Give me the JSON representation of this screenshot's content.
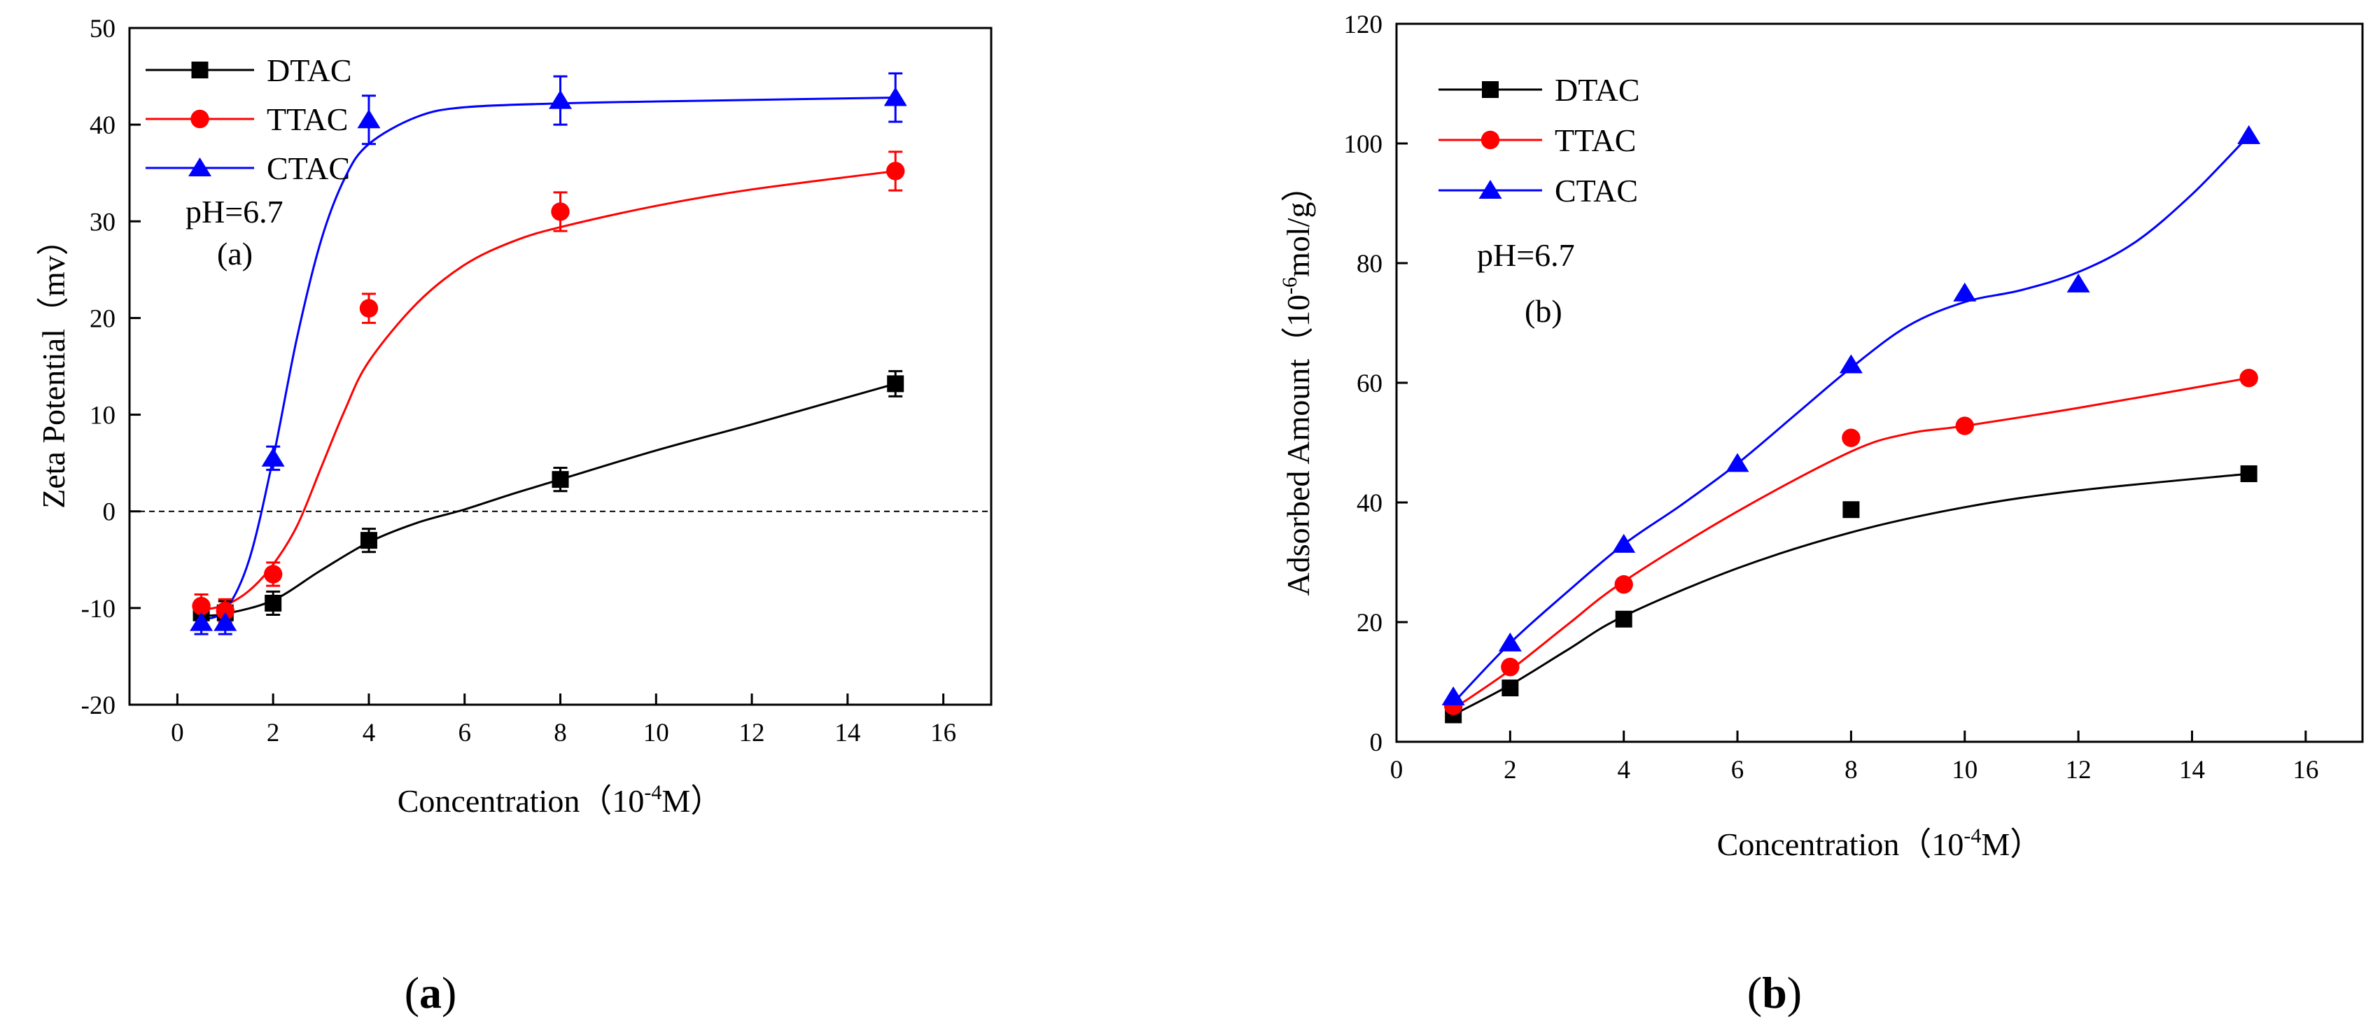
{
  "chart_data": [
    {
      "type": "line",
      "panel": "(a)",
      "xlabel": "Concentration",
      "xlabel_unit_open": "（",
      "xlabel_unit_base": "10",
      "xlabel_unit_exp": "-4",
      "xlabel_unit_tail": "M）",
      "ylabel": "Zeta Potential（mv）",
      "xlim": [
        -1,
        17
      ],
      "ylim": [
        -20,
        50
      ],
      "xticks": [
        0,
        2,
        4,
        6,
        8,
        10,
        12,
        14,
        16
      ],
      "yticks": [
        -20,
        -10,
        0,
        10,
        20,
        30,
        40,
        50
      ],
      "reference_line_y": 0,
      "legend_position": "top-left",
      "annotations": [
        "pH=6.7",
        "(a)"
      ],
      "series": [
        {
          "name": "DTAC",
          "color": "#000000",
          "marker": "square",
          "x": [
            0.5,
            1,
            2,
            4,
            8,
            15
          ],
          "y": [
            -10.5,
            -10.5,
            -9.5,
            -3,
            3.3,
            13.2
          ],
          "err": [
            1.2,
            1.2,
            1.2,
            1.2,
            1.2,
            1.3
          ],
          "fit_x": [
            0.5,
            1,
            2,
            3,
            4,
            5,
            6,
            7,
            8,
            10,
            12,
            14,
            15
          ],
          "fit_y": [
            -10.8,
            -10.6,
            -9.2,
            -6.1,
            -3.2,
            -1.2,
            0.2,
            1.8,
            3.3,
            6.3,
            9.0,
            11.8,
            13.2
          ]
        },
        {
          "name": "TTAC",
          "color": "#ff0000",
          "marker": "circle",
          "x": [
            0.5,
            1,
            2,
            4,
            8,
            15
          ],
          "y": [
            -9.8,
            -10.3,
            -6.5,
            21,
            31,
            35.2
          ],
          "err": [
            1.2,
            1.2,
            1.2,
            1.5,
            2.0,
            2.0
          ],
          "fit_x": [
            0.5,
            1,
            1.5,
            2,
            2.5,
            3,
            3.5,
            4,
            5,
            6,
            7,
            8,
            10,
            12,
            15
          ],
          "fit_y": [
            -10.2,
            -9.7,
            -8.2,
            -5.5,
            -1.5,
            4.5,
            10.5,
            15.5,
            21.5,
            25.5,
            27.9,
            29.4,
            31.6,
            33.3,
            35.2
          ]
        },
        {
          "name": "CTAC",
          "color": "#0000ff",
          "marker": "triangle",
          "x": [
            0.5,
            1,
            2,
            4,
            8,
            15
          ],
          "y": [
            -11.5,
            -11.5,
            5.5,
            40.5,
            42.5,
            42.8
          ],
          "err": [
            1.2,
            1.2,
            1.2,
            2.5,
            2.5,
            2.5
          ],
          "fit_x": [
            0.5,
            1,
            1.5,
            2,
            2.5,
            3,
            3.5,
            4,
            5,
            6,
            8,
            10,
            15
          ],
          "fit_y": [
            -11.2,
            -10.2,
            -5.0,
            5.5,
            18.0,
            28.0,
            34.5,
            38.0,
            40.8,
            41.8,
            42.2,
            42.4,
            42.8
          ]
        }
      ]
    },
    {
      "type": "line",
      "panel": "(b)",
      "xlabel": "Concentration",
      "xlabel_unit_open": "（",
      "xlabel_unit_base": "10",
      "xlabel_unit_exp": "-4",
      "xlabel_unit_tail": "M）",
      "ylabel_main": "Adsorbed Amount（",
      "ylabel_unit_base": "10",
      "ylabel_unit_exp": "-6",
      "ylabel_unit_tail": "mol/g）",
      "xlim": [
        0,
        17
      ],
      "ylim": [
        0,
        120
      ],
      "xticks": [
        0,
        2,
        4,
        6,
        8,
        10,
        12,
        14,
        16
      ],
      "yticks": [
        0,
        20,
        40,
        60,
        80,
        100,
        120
      ],
      "legend_position": "top-left",
      "annotations": [
        "pH=6.7",
        "(b)"
      ],
      "series": [
        {
          "name": "DTAC",
          "color": "#000000",
          "marker": "square",
          "x": [
            1,
            2,
            4,
            8,
            15
          ],
          "y": [
            4.5,
            9,
            20.5,
            38.8,
            44.8
          ],
          "fit_x": [
            1,
            2,
            3,
            4,
            6,
            8,
            10,
            12,
            15
          ],
          "fit_y": [
            4.5,
            9.5,
            15.3,
            21,
            29,
            35,
            39.2,
            42,
            44.8
          ]
        },
        {
          "name": "TTAC",
          "color": "#ff0000",
          "marker": "circle",
          "x": [
            1,
            2,
            4,
            8,
            10,
            15
          ],
          "y": [
            6,
            12.5,
            26.3,
            50.8,
            52.8,
            60.8
          ],
          "fit_x": [
            1,
            2,
            3,
            4,
            6,
            8,
            9,
            10,
            12,
            15
          ],
          "fit_y": [
            5.5,
            12,
            19.5,
            26.8,
            38.5,
            48.5,
            51.5,
            52.8,
            55.8,
            60.8
          ]
        },
        {
          "name": "CTAC",
          "color": "#0000ff",
          "marker": "triangle",
          "x": [
            1,
            2,
            4,
            6,
            8,
            10,
            12,
            15
          ],
          "y": [
            7.5,
            16.5,
            33,
            46.5,
            63,
            75,
            76.5,
            101.3
          ],
          "fit_x": [
            1,
            2,
            3,
            4,
            5,
            6,
            7,
            8,
            9,
            10,
            11,
            12,
            13,
            14,
            15
          ],
          "fit_y": [
            6.5,
            16.5,
            25,
            33,
            39.5,
            46.5,
            54.5,
            62.5,
            69.5,
            73.5,
            75.5,
            78.5,
            83.5,
            91.5,
            101.3
          ]
        }
      ]
    }
  ],
  "captions": [
    {
      "open": "(",
      "letter": "a",
      "close": ")"
    },
    {
      "open": "(",
      "letter": "b",
      "close": ")"
    }
  ]
}
